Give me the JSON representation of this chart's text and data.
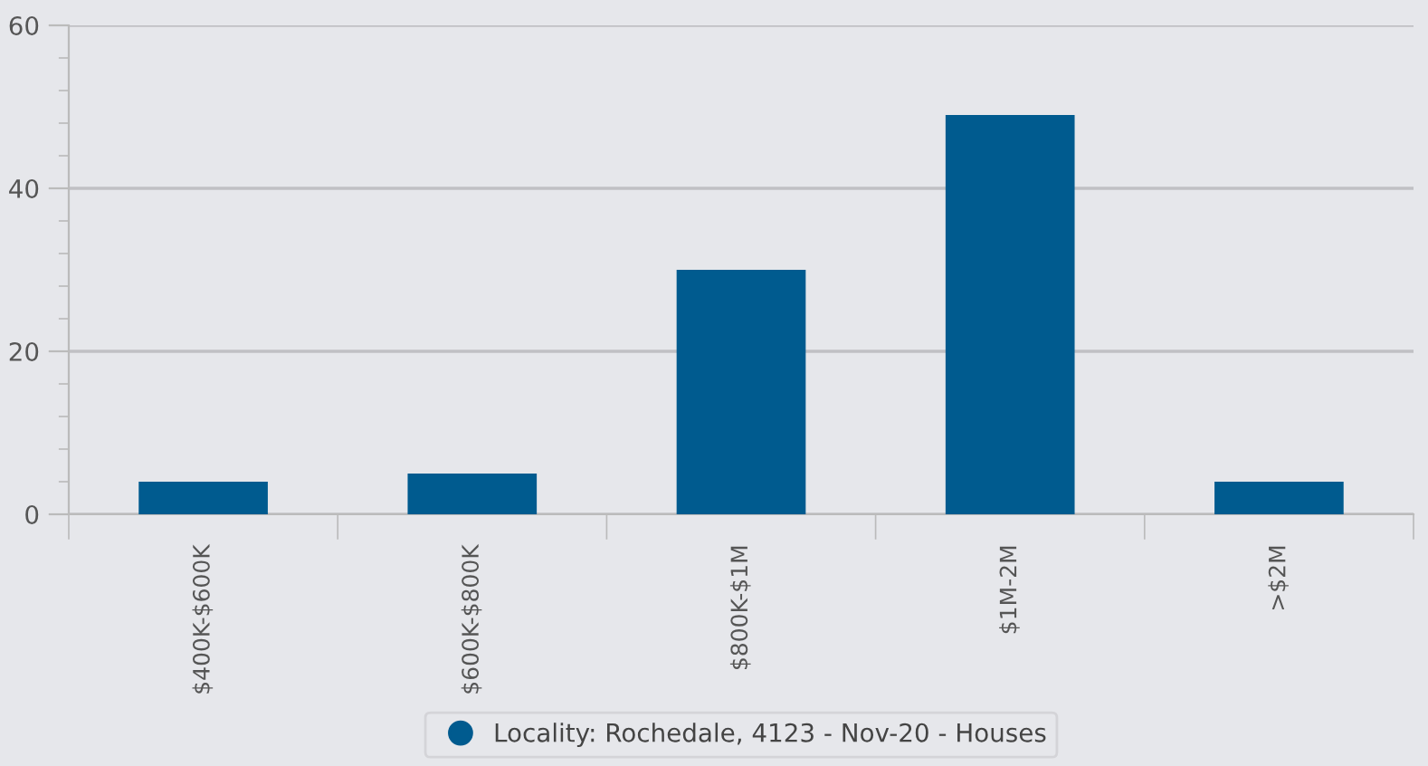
{
  "chart_data": {
    "type": "bar",
    "categories": [
      "$400K-$600K",
      "$600K-$800K",
      "$800K-$1M",
      "$1M-2M",
      ">$2M"
    ],
    "series": [
      {
        "name": "Locality: Rochedale, 4123 - Nov-20 - Houses",
        "color": "#005b8f",
        "values": [
          4,
          5,
          30,
          49,
          4
        ]
      }
    ],
    "ylim": [
      0,
      60
    ],
    "yticks": [
      0,
      20,
      40,
      60
    ],
    "grid": "y",
    "legend": "bottom"
  }
}
